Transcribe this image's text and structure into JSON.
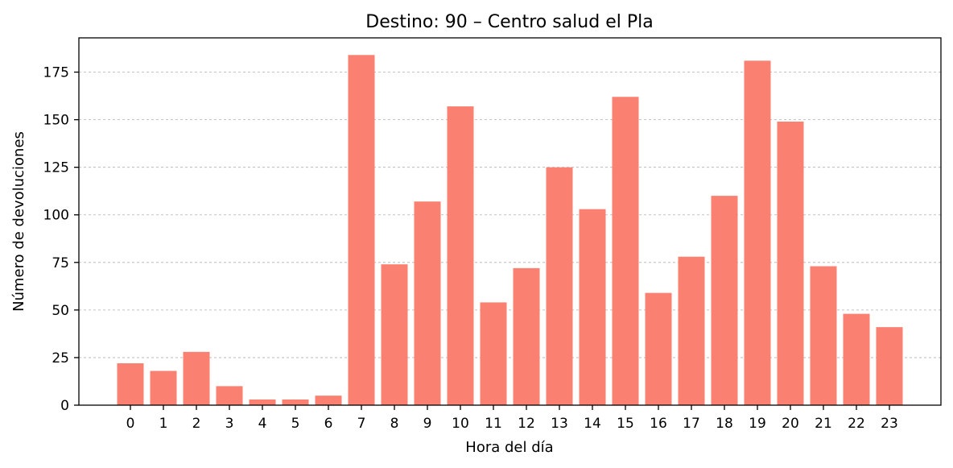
{
  "chart_data": {
    "type": "bar",
    "title": "Destino: 90 – Centro salud el Pla",
    "xlabel": "Hora del día",
    "ylabel": "Número de devoluciones",
    "categories": [
      "0",
      "1",
      "2",
      "3",
      "4",
      "5",
      "6",
      "7",
      "8",
      "9",
      "10",
      "11",
      "12",
      "13",
      "14",
      "15",
      "16",
      "17",
      "18",
      "19",
      "20",
      "21",
      "22",
      "23"
    ],
    "values": [
      22,
      18,
      28,
      10,
      3,
      3,
      5,
      184,
      74,
      107,
      157,
      54,
      72,
      125,
      103,
      162,
      59,
      78,
      110,
      181,
      149,
      73,
      48,
      41
    ],
    "ylim": [
      0,
      193
    ],
    "yticks": [
      0,
      25,
      50,
      75,
      100,
      125,
      150,
      175
    ],
    "grid": "y-dashed",
    "bar_color": "#fa8072"
  }
}
